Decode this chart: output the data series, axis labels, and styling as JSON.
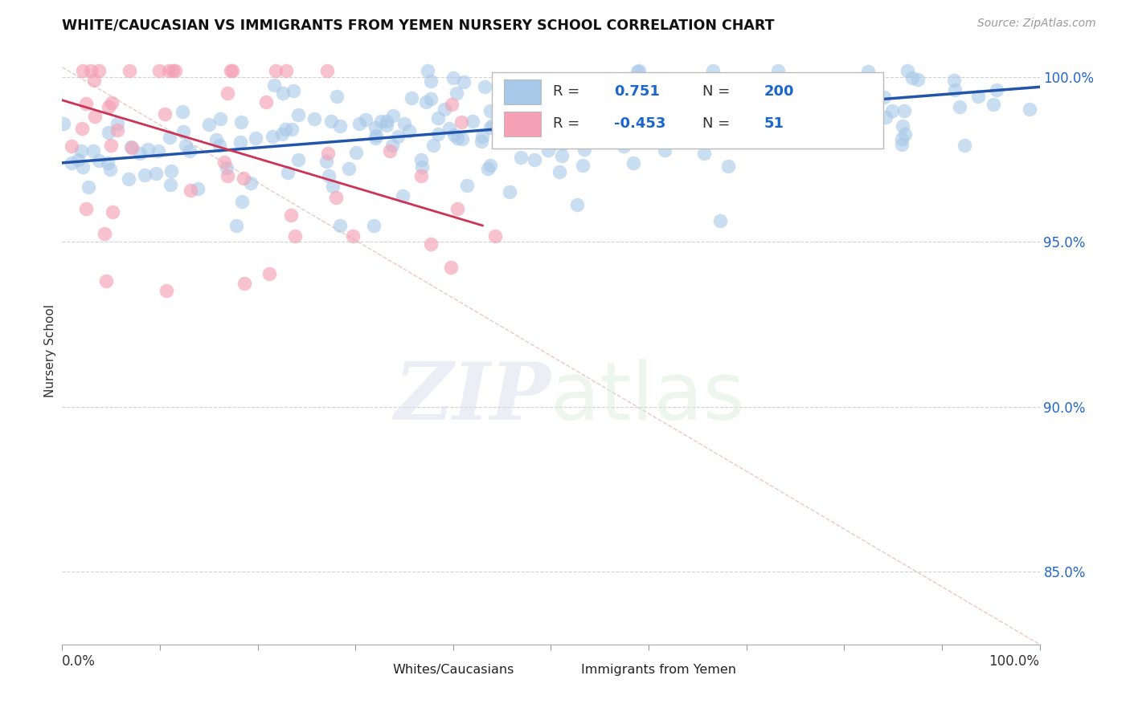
{
  "title": "WHITE/CAUCASIAN VS IMMIGRANTS FROM YEMEN NURSERY SCHOOL CORRELATION CHART",
  "source": "Source: ZipAtlas.com",
  "ylabel": "Nursery School",
  "xlim": [
    0.0,
    1.0
  ],
  "ylim": [
    0.828,
    1.006
  ],
  "yticks": [
    0.85,
    0.9,
    0.95,
    1.0
  ],
  "ytick_labels": [
    "85.0%",
    "90.0%",
    "95.0%",
    "100.0%"
  ],
  "blue_R": 0.751,
  "blue_N": 200,
  "pink_R": -0.453,
  "pink_N": 51,
  "blue_color": "#a8c8e8",
  "pink_color": "#f4a0b5",
  "blue_edge_color": "#6699cc",
  "pink_edge_color": "#dd7799",
  "blue_line_color": "#2255aa",
  "pink_line_color": "#cc3355",
  "diag_line_color": "#ddaaaa",
  "legend_label_blue": "Whites/Caucasians",
  "legend_label_pink": "Immigrants from Yemen",
  "watermark_zip": "ZIP",
  "watermark_atlas": "atlas",
  "background_color": "#ffffff",
  "grid_color": "#cccccc",
  "blue_line_start_x": 0.0,
  "blue_line_start_y": 0.974,
  "blue_line_end_x": 1.0,
  "blue_line_end_y": 0.997,
  "pink_line_start_x": 0.0,
  "pink_line_start_y": 0.993,
  "pink_line_end_x": 0.43,
  "pink_line_end_y": 0.955
}
